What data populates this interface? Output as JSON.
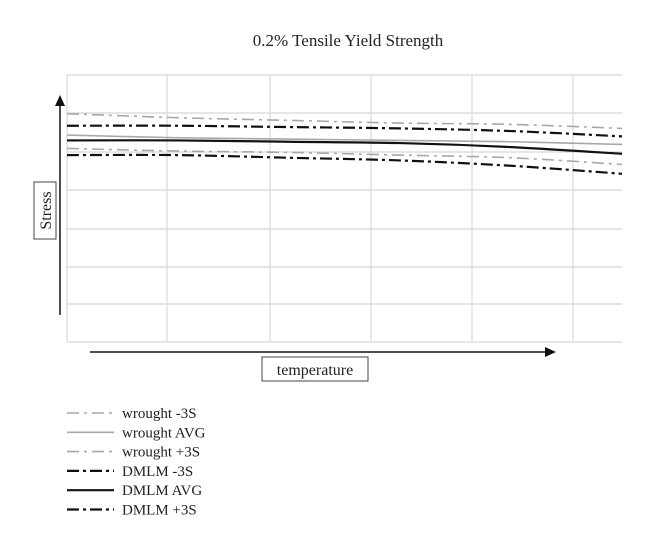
{
  "chart_data": {
    "type": "line",
    "title": "0.2% Tensile Yield Strength",
    "xlabel": "temperature",
    "ylabel": "Stress",
    "grid": true,
    "ticks_labeled": false,
    "legend_position": "bottom-left",
    "xlim": [
      0,
      1
    ],
    "ylim": [
      0,
      1
    ],
    "x": [
      0,
      0.2,
      0.4,
      0.6,
      0.8,
      1.0
    ],
    "series": [
      {
        "name": "wrought -3S",
        "color": "#a8a8a8",
        "dash": "dashdot",
        "weight": "light",
        "values": [
          0.725,
          0.715,
          0.71,
          0.7,
          0.69,
          0.665
        ]
      },
      {
        "name": "wrought AVG",
        "color": "#a8a8a8",
        "dash": "solid",
        "weight": "light",
        "values": [
          0.775,
          0.765,
          0.76,
          0.755,
          0.75,
          0.74
        ]
      },
      {
        "name": "wrought +3S",
        "color": "#a8a8a8",
        "dash": "dashdot",
        "weight": "light",
        "values": [
          0.855,
          0.84,
          0.83,
          0.82,
          0.815,
          0.8
        ]
      },
      {
        "name": "DMLM -3S",
        "color": "#111111",
        "dash": "dashdot",
        "weight": "heavy",
        "values": [
          0.7,
          0.7,
          0.69,
          0.68,
          0.66,
          0.63
        ]
      },
      {
        "name": "DMLM AVG",
        "color": "#111111",
        "dash": "solid",
        "weight": "heavy",
        "values": [
          0.755,
          0.755,
          0.75,
          0.745,
          0.73,
          0.705
        ]
      },
      {
        "name": "DMLM +3S",
        "color": "#111111",
        "dash": "dashdot",
        "weight": "heavy",
        "values": [
          0.81,
          0.81,
          0.805,
          0.8,
          0.79,
          0.77
        ]
      }
    ]
  }
}
